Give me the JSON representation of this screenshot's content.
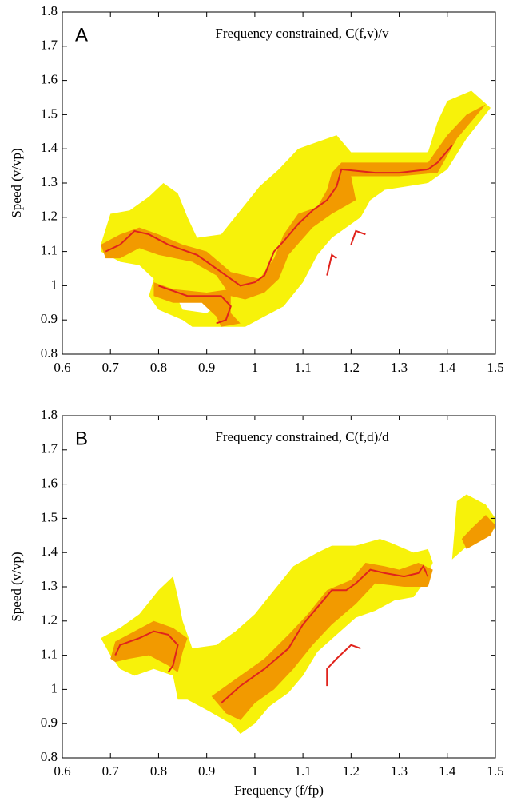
{
  "chart_data": [
    {
      "type": "contour",
      "panel_label": "A",
      "title": "Frequency constrained, C(f,v)/v",
      "y_label": "Speed (v/vp)",
      "xlim": [
        0.6,
        1.5
      ],
      "ylim": [
        0.8,
        1.8
      ],
      "xticks": [
        0.6,
        0.7,
        0.8,
        0.9,
        1,
        1.1,
        1.2,
        1.3,
        1.4,
        1.5
      ],
      "yticks": [
        0.8,
        0.9,
        1,
        1.1,
        1.2,
        1.3,
        1.4,
        1.5,
        1.6,
        1.7,
        1.8
      ],
      "regions": [
        {
          "color": "#f7f20a",
          "x": [
            0.68,
            0.7,
            0.74,
            0.78,
            0.81,
            0.84,
            0.86,
            0.88,
            0.93,
            0.97,
            1.01,
            1.05,
            1.09,
            1.13,
            1.17,
            1.2,
            1.36,
            1.38,
            1.4,
            1.45,
            1.49,
            1.44,
            1.4,
            1.36,
            1.27,
            1.24,
            1.22,
            1.19,
            1.16,
            1.13,
            1.1,
            1.06,
            1.02,
            0.98,
            0.93,
            0.87,
            0.85,
            0.8,
            0.78,
            0.79,
            0.76,
            0.72,
            0.68
          ],
          "y": [
            1.12,
            1.21,
            1.22,
            1.26,
            1.3,
            1.27,
            1.2,
            1.14,
            1.15,
            1.22,
            1.29,
            1.34,
            1.4,
            1.42,
            1.44,
            1.39,
            1.39,
            1.48,
            1.54,
            1.57,
            1.52,
            1.43,
            1.34,
            1.3,
            1.28,
            1.25,
            1.2,
            1.17,
            1.14,
            1.09,
            1.01,
            0.94,
            0.91,
            0.88,
            0.88,
            0.88,
            0.9,
            0.93,
            0.97,
            1.02,
            1.06,
            1.07,
            1.1
          ]
        },
        {
          "color": "#ffffff",
          "x": [
            0.84,
            0.93,
            0.9,
            0.85
          ],
          "y": [
            0.96,
            0.95,
            0.92,
            0.93
          ]
        },
        {
          "color": "#f29a00",
          "x": [
            0.68,
            0.72,
            0.76,
            0.8,
            0.85,
            0.9,
            0.95,
            0.98,
            1.01,
            1.04,
            1.06,
            1.09,
            1.13,
            1.15,
            1.16,
            1.18,
            1.25,
            1.36,
            1.4,
            1.44,
            1.48,
            1.42,
            1.38,
            1.3,
            1.2,
            1.21,
            1.16,
            1.12,
            1.07,
            1.05,
            1.02,
            0.98,
            0.95,
            0.92,
            0.87,
            0.8,
            0.76,
            0.72,
            0.69
          ],
          "y": [
            1.12,
            1.15,
            1.17,
            1.15,
            1.12,
            1.1,
            1.04,
            1.03,
            1.02,
            1.08,
            1.15,
            1.21,
            1.23,
            1.28,
            1.33,
            1.36,
            1.36,
            1.36,
            1.44,
            1.5,
            1.53,
            1.43,
            1.33,
            1.32,
            1.32,
            1.25,
            1.21,
            1.17,
            1.09,
            1.02,
            0.98,
            0.96,
            0.97,
            1.03,
            1.07,
            1.09,
            1.11,
            1.08,
            1.08
          ]
        },
        {
          "color": "#f29a00",
          "x": [
            0.79,
            0.83,
            0.9,
            0.95,
            0.95,
            0.97,
            0.93,
            0.92,
            0.89,
            0.83,
            0.79
          ],
          "y": [
            1.01,
            0.99,
            0.98,
            0.99,
            0.92,
            0.89,
            0.88,
            0.91,
            0.95,
            0.95,
            0.97
          ]
        }
      ],
      "lines": [
        {
          "color": "#e0231c",
          "x": [
            0.69,
            0.72,
            0.75,
            0.78,
            0.82,
            0.88,
            0.92,
            0.95,
            0.97,
            1.0,
            1.02,
            1.04,
            1.06,
            1.09,
            1.12,
            1.15,
            1.17,
            1.18,
            1.25,
            1.3,
            1.36,
            1.38,
            1.41,
            null,
            0.8,
            0.86,
            0.93,
            0.95,
            0.94,
            0.92,
            null,
            1.15,
            1.16,
            1.17,
            null,
            1.2,
            1.21,
            1.23
          ],
          "y": [
            1.1,
            1.12,
            1.16,
            1.15,
            1.12,
            1.09,
            1.05,
            1.02,
            1.0,
            1.01,
            1.03,
            1.1,
            1.13,
            1.18,
            1.22,
            1.25,
            1.29,
            1.34,
            1.33,
            1.33,
            1.34,
            1.36,
            1.41,
            null,
            1.0,
            0.97,
            0.97,
            0.94,
            0.9,
            0.89,
            null,
            1.03,
            1.09,
            1.08,
            null,
            1.12,
            1.16,
            1.15
          ]
        }
      ]
    },
    {
      "type": "contour",
      "panel_label": "B",
      "title": "Frequency constrained, C(f,d)/d",
      "y_label": "Speed (v/vp)",
      "x_label": "Frequency (f/fp)",
      "xlim": [
        0.6,
        1.5
      ],
      "ylim": [
        0.8,
        1.8
      ],
      "xticks": [
        0.6,
        0.7,
        0.8,
        0.9,
        1,
        1.1,
        1.2,
        1.3,
        1.4,
        1.5
      ],
      "yticks": [
        0.8,
        0.9,
        1,
        1.1,
        1.2,
        1.3,
        1.4,
        1.5,
        1.6,
        1.7,
        1.8
      ],
      "regions": [
        {
          "color": "#f7f20a",
          "x": [
            0.68,
            0.72,
            0.76,
            0.8,
            0.83,
            0.84,
            0.85,
            0.87,
            0.92,
            0.96,
            1.0,
            1.04,
            1.08,
            1.13,
            1.16,
            1.21,
            1.26,
            1.28,
            1.33,
            1.36,
            1.37,
            1.35,
            1.33,
            1.29,
            1.25,
            1.21,
            1.17,
            1.13,
            1.1,
            1.07,
            1.03,
            1.0,
            0.97,
            0.95,
            0.9,
            0.86,
            0.84,
            0.83,
            0.79,
            0.75,
            0.72,
            0.7
          ],
          "y": [
            1.15,
            1.18,
            1.22,
            1.29,
            1.33,
            1.27,
            1.2,
            1.12,
            1.13,
            1.17,
            1.22,
            1.29,
            1.36,
            1.4,
            1.42,
            1.42,
            1.44,
            1.43,
            1.4,
            1.41,
            1.37,
            1.31,
            1.27,
            1.26,
            1.23,
            1.21,
            1.16,
            1.11,
            1.04,
            0.99,
            0.95,
            0.9,
            0.87,
            0.9,
            0.94,
            0.97,
            0.97,
            1.04,
            1.06,
            1.04,
            1.06,
            1.1
          ]
        },
        {
          "color": "#f7f20a",
          "x": [
            1.41,
            1.42,
            1.44,
            1.48,
            1.5,
            1.5,
            1.45
          ],
          "y": [
            1.38,
            1.55,
            1.57,
            1.54,
            1.5,
            1.47,
            1.43
          ]
        },
        {
          "color": "#f29a00",
          "x": [
            0.7,
            0.71,
            0.75,
            0.79,
            0.83,
            0.86,
            0.85,
            0.84,
            0.82,
            0.78,
            0.74,
            0.71
          ],
          "y": [
            1.09,
            1.14,
            1.17,
            1.2,
            1.18,
            1.15,
            1.11,
            1.05,
            1.07,
            1.1,
            1.09,
            1.08
          ]
        },
        {
          "color": "#f29a00",
          "x": [
            0.91,
            0.96,
            1.02,
            1.07,
            1.11,
            1.15,
            1.2,
            1.23,
            1.27,
            1.3,
            1.34,
            1.37,
            1.36,
            1.31,
            1.25,
            1.21,
            1.16,
            1.12,
            1.08,
            1.04,
            1.0,
            0.97,
            0.94
          ],
          "y": [
            0.98,
            1.03,
            1.09,
            1.16,
            1.22,
            1.29,
            1.32,
            1.37,
            1.36,
            1.35,
            1.37,
            1.35,
            1.3,
            1.3,
            1.31,
            1.25,
            1.19,
            1.13,
            1.06,
            1.0,
            0.96,
            0.91,
            0.93
          ]
        },
        {
          "color": "#f29a00",
          "x": [
            1.43,
            1.45,
            1.48,
            1.5,
            1.49,
            1.44
          ],
          "y": [
            1.44,
            1.47,
            1.51,
            1.48,
            1.45,
            1.41
          ]
        }
      ],
      "lines": [
        {
          "color": "#e0231c",
          "x": [
            0.71,
            0.72,
            0.76,
            0.79,
            0.82,
            0.84,
            0.83,
            0.82,
            null,
            0.93,
            0.97,
            1.02,
            1.07,
            1.1,
            1.13,
            1.16,
            1.19,
            1.21,
            1.24,
            1.27,
            1.31,
            1.34,
            1.35,
            1.36,
            null,
            1.15,
            1.15,
            1.17,
            1.2,
            1.22
          ],
          "y": [
            1.1,
            1.13,
            1.15,
            1.17,
            1.16,
            1.13,
            1.07,
            1.05,
            null,
            0.96,
            1.01,
            1.06,
            1.12,
            1.19,
            1.24,
            1.29,
            1.29,
            1.31,
            1.35,
            1.34,
            1.33,
            1.34,
            1.36,
            1.33,
            null,
            1.01,
            1.06,
            1.09,
            1.13,
            1.12
          ]
        }
      ]
    }
  ]
}
